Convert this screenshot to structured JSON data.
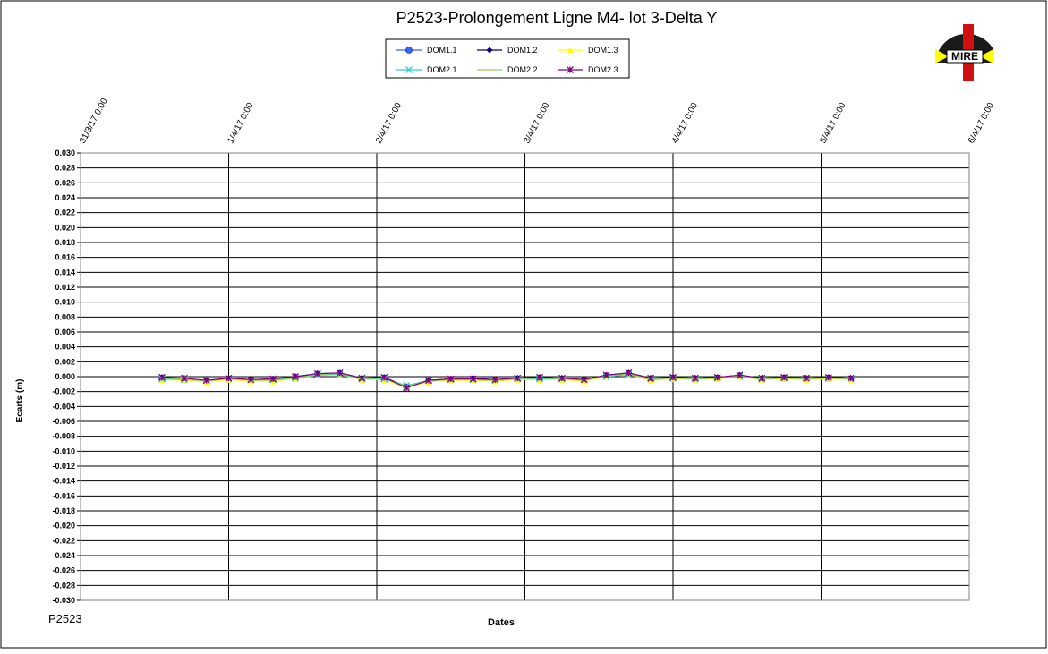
{
  "chart_data": {
    "type": "line",
    "title": "P2523-Prolongement  Ligne M4- lot 3-Delta Y",
    "y_label": "Ecarts (m)",
    "x_label": "Dates",
    "footer": "P2523",
    "logo_text": "MIRE",
    "xlim": [
      0,
      6
    ],
    "xticks": [
      {
        "value": 0,
        "label": "31/3/17 0:00"
      },
      {
        "value": 1,
        "label": "1/4/17 0:00"
      },
      {
        "value": 2,
        "label": "2/4/17 0:00"
      },
      {
        "value": 3,
        "label": "3/4/17 0:00"
      },
      {
        "value": 4,
        "label": "4/4/17 0:00"
      },
      {
        "value": 5,
        "label": "5/4/17 0:00"
      },
      {
        "value": 6,
        "label": "6/4/17 0:00"
      }
    ],
    "ylim": [
      -0.03,
      0.03
    ],
    "yticks": [
      {
        "value": 0.03,
        "label": "0.030"
      },
      0.028,
      0.026,
      0.024,
      0.022,
      {
        "value": 0.02,
        "label": "0.020"
      },
      0.018,
      0.016,
      0.014,
      0.012,
      {
        "value": 0.01,
        "label": "0.010"
      },
      0.008,
      0.006,
      0.004,
      0.002,
      {
        "value": 0,
        "label": "0.000"
      },
      -0.002,
      -0.004,
      -0.006,
      -0.008,
      {
        "value": -0.01,
        "label": "-0.010"
      },
      -0.012,
      -0.014,
      -0.016,
      -0.018,
      {
        "value": -0.02,
        "label": "-0.020"
      },
      -0.022,
      -0.024,
      -0.026,
      -0.028,
      {
        "value": -0.03,
        "label": "-0.030"
      }
    ],
    "grid": true,
    "x": [
      0.55,
      0.7,
      0.85,
      1.0,
      1.15,
      1.3,
      1.45,
      1.6,
      1.75,
      1.9,
      2.05,
      2.2,
      2.35,
      2.5,
      2.65,
      2.8,
      2.95,
      3.1,
      3.25,
      3.4,
      3.55,
      3.7,
      3.85,
      4.0,
      4.15,
      4.3,
      4.45,
      4.6,
      4.75,
      4.9,
      5.05,
      5.2
    ],
    "series": [
      {
        "name": "DOM1.1",
        "color": "#3366ff",
        "marker": "circle",
        "values": [
          -0.0002,
          -0.0004,
          -0.0006,
          -0.0003,
          -0.0005,
          -0.0004,
          -0.0001,
          0.0003,
          0.0004,
          -0.0003,
          -0.0002,
          -0.0014,
          -0.0006,
          -0.0004,
          -0.0003,
          -0.0005,
          -0.0003,
          -0.0002,
          -0.0003,
          -0.0005,
          0.0001,
          0.0004,
          -0.0003,
          -0.0002,
          -0.0003,
          -0.0002,
          0.0001,
          -0.0003,
          -0.0002,
          -0.0003,
          -0.0002,
          -0.0003
        ]
      },
      {
        "name": "DOM1.2",
        "color": "#000080",
        "marker": "diamond",
        "values": [
          -0.0001,
          -0.0003,
          -0.0005,
          -0.0002,
          -0.0004,
          -0.0003,
          0.0,
          0.0004,
          0.0005,
          -0.0002,
          -0.0001,
          -0.0013,
          -0.0005,
          -0.0003,
          -0.0002,
          -0.0004,
          -0.0002,
          -0.0001,
          -0.0002,
          -0.0004,
          0.0002,
          0.0005,
          -0.0002,
          -0.0001,
          -0.0002,
          -0.0001,
          0.0002,
          -0.0002,
          -0.0001,
          -0.0002,
          -0.0001,
          -0.0002
        ]
      },
      {
        "name": "DOM1.3",
        "color": "#ffff00",
        "marker": "triangle",
        "values": [
          -0.0004,
          -0.0005,
          -0.0007,
          -0.0004,
          -0.0006,
          -0.0006,
          -0.0003,
          0.0002,
          0.0003,
          -0.0004,
          -0.0004,
          -0.0015,
          -0.0007,
          -0.0005,
          -0.0005,
          -0.0006,
          -0.0004,
          -0.0004,
          -0.0004,
          -0.0006,
          0.0,
          0.0003,
          -0.0005,
          -0.0003,
          -0.0004,
          -0.0003,
          0.0,
          -0.0004,
          -0.0003,
          -0.0004,
          -0.0003,
          -0.0004
        ]
      },
      {
        "name": "DOM2.1",
        "color": "#33cccc",
        "marker": "x",
        "values": [
          -0.0003,
          -0.0004,
          -0.0005,
          -0.0003,
          -0.0004,
          -0.0004,
          -0.0002,
          0.0002,
          0.0003,
          -0.0003,
          -0.0003,
          -0.0012,
          -0.0005,
          -0.0004,
          -0.0004,
          -0.0005,
          -0.0003,
          -0.0003,
          -0.0003,
          -0.0004,
          0.0,
          0.0003,
          -0.0003,
          -0.0002,
          -0.0003,
          -0.0002,
          0.0,
          -0.0003,
          -0.0002,
          -0.0002,
          -0.0002,
          -0.0003
        ]
      },
      {
        "name": "DOM2.2",
        "color": "#99cc66",
        "marker": "none",
        "values": [
          -0.0002,
          -0.0003,
          -0.0006,
          -0.0003,
          -0.0005,
          -0.0005,
          -0.0002,
          0.0003,
          0.0004,
          -0.0003,
          -0.0002,
          -0.0013,
          -0.0006,
          -0.0004,
          -0.0004,
          -0.0005,
          -0.0003,
          -0.0002,
          -0.0003,
          -0.0005,
          0.0001,
          0.0004,
          -0.0004,
          -0.0002,
          -0.0003,
          -0.0002,
          0.0001,
          -0.0003,
          -0.0002,
          -0.0003,
          -0.0002,
          -0.0003
        ]
      },
      {
        "name": "DOM2.3",
        "color": "#800080",
        "marker": "star",
        "values": [
          -0.0001,
          -0.0002,
          -0.0005,
          -0.0002,
          -0.0004,
          -0.0003,
          0.0,
          0.0004,
          0.0005,
          -0.0002,
          -0.0001,
          -0.0015,
          -0.0005,
          -0.0003,
          -0.0003,
          -0.0004,
          -0.0002,
          -0.0001,
          -0.0002,
          -0.0004,
          0.0002,
          0.0005,
          -0.0002,
          -0.0001,
          -0.0002,
          -0.0001,
          0.0002,
          -0.0002,
          -0.0001,
          -0.0002,
          -0.0001,
          -0.0002
        ]
      }
    ]
  }
}
